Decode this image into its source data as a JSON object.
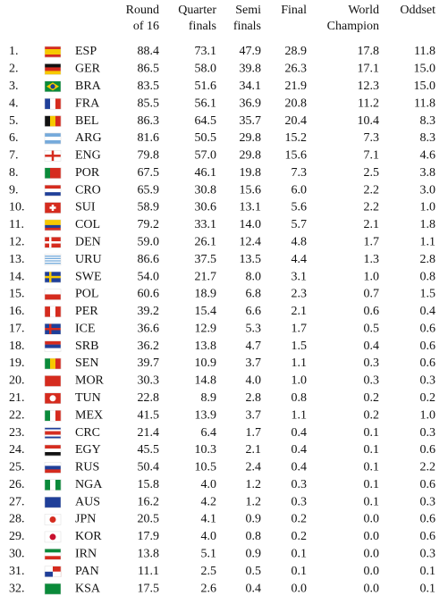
{
  "table": {
    "headers": [
      [
        "Round",
        "of 16"
      ],
      [
        "Quarter",
        "finals"
      ],
      [
        "Semi",
        "finals"
      ],
      [
        "Final"
      ],
      [
        "World",
        "Champion"
      ],
      [
        "Oddset"
      ]
    ],
    "rows": [
      {
        "rank": "1.",
        "code": "ESP",
        "cells": [
          "88.4",
          "73.1",
          "47.9",
          "28.9",
          "17.8",
          "11.8"
        ]
      },
      {
        "rank": "2.",
        "code": "GER",
        "cells": [
          "86.5",
          "58.0",
          "39.8",
          "26.3",
          "17.1",
          "15.0"
        ]
      },
      {
        "rank": "3.",
        "code": "BRA",
        "cells": [
          "83.5",
          "51.6",
          "34.1",
          "21.9",
          "12.3",
          "15.0"
        ]
      },
      {
        "rank": "4.",
        "code": "FRA",
        "cells": [
          "85.5",
          "56.1",
          "36.9",
          "20.8",
          "11.2",
          "11.8"
        ]
      },
      {
        "rank": "5.",
        "code": "BEL",
        "cells": [
          "86.3",
          "64.5",
          "35.7",
          "20.4",
          "10.4",
          "8.3"
        ]
      },
      {
        "rank": "6.",
        "code": "ARG",
        "cells": [
          "81.6",
          "50.5",
          "29.8",
          "15.2",
          "7.3",
          "8.3"
        ]
      },
      {
        "rank": "7.",
        "code": "ENG",
        "cells": [
          "79.8",
          "57.0",
          "29.8",
          "15.6",
          "7.1",
          "4.6"
        ]
      },
      {
        "rank": "8.",
        "code": "POR",
        "cells": [
          "67.5",
          "46.1",
          "19.8",
          "7.3",
          "2.5",
          "3.8"
        ]
      },
      {
        "rank": "9.",
        "code": "CRO",
        "cells": [
          "65.9",
          "30.8",
          "15.6",
          "6.0",
          "2.2",
          "3.0"
        ]
      },
      {
        "rank": "10.",
        "code": "SUI",
        "cells": [
          "58.9",
          "30.6",
          "13.1",
          "5.6",
          "2.2",
          "1.0"
        ]
      },
      {
        "rank": "11.",
        "code": "COL",
        "cells": [
          "79.2",
          "33.1",
          "14.0",
          "5.7",
          "2.1",
          "1.8"
        ]
      },
      {
        "rank": "12.",
        "code": "DEN",
        "cells": [
          "59.0",
          "26.1",
          "12.4",
          "4.8",
          "1.7",
          "1.1"
        ]
      },
      {
        "rank": "13.",
        "code": "URU",
        "cells": [
          "86.6",
          "37.5",
          "13.5",
          "4.4",
          "1.3",
          "2.8"
        ]
      },
      {
        "rank": "14.",
        "code": "SWE",
        "cells": [
          "54.0",
          "21.7",
          "8.0",
          "3.1",
          "1.0",
          "0.8"
        ]
      },
      {
        "rank": "15.",
        "code": "POL",
        "cells": [
          "60.6",
          "18.9",
          "6.8",
          "2.3",
          "0.7",
          "1.5"
        ]
      },
      {
        "rank": "16.",
        "code": "PER",
        "cells": [
          "39.2",
          "15.4",
          "6.6",
          "2.1",
          "0.6",
          "0.4"
        ]
      },
      {
        "rank": "17.",
        "code": "ICE",
        "cells": [
          "36.6",
          "12.9",
          "5.3",
          "1.7",
          "0.5",
          "0.6"
        ]
      },
      {
        "rank": "18.",
        "code": "SRB",
        "cells": [
          "36.2",
          "13.8",
          "4.7",
          "1.5",
          "0.4",
          "0.6"
        ]
      },
      {
        "rank": "19.",
        "code": "SEN",
        "cells": [
          "39.7",
          "10.9",
          "3.7",
          "1.1",
          "0.3",
          "0.6"
        ]
      },
      {
        "rank": "20.",
        "code": "MOR",
        "cells": [
          "30.3",
          "14.8",
          "4.0",
          "1.0",
          "0.3",
          "0.3"
        ]
      },
      {
        "rank": "21.",
        "code": "TUN",
        "cells": [
          "22.8",
          "8.9",
          "2.8",
          "0.8",
          "0.2",
          "0.2"
        ]
      },
      {
        "rank": "22.",
        "code": "MEX",
        "cells": [
          "41.5",
          "13.9",
          "3.7",
          "1.1",
          "0.2",
          "1.0"
        ]
      },
      {
        "rank": "23.",
        "code": "CRC",
        "cells": [
          "21.4",
          "6.4",
          "1.7",
          "0.4",
          "0.1",
          "0.3"
        ]
      },
      {
        "rank": "24.",
        "code": "EGY",
        "cells": [
          "45.5",
          "10.3",
          "2.1",
          "0.4",
          "0.1",
          "0.6"
        ]
      },
      {
        "rank": "25.",
        "code": "RUS",
        "cells": [
          "50.4",
          "10.5",
          "2.4",
          "0.4",
          "0.1",
          "2.2"
        ]
      },
      {
        "rank": "26.",
        "code": "NGA",
        "cells": [
          "15.8",
          "4.0",
          "1.2",
          "0.3",
          "0.1",
          "0.6"
        ]
      },
      {
        "rank": "27.",
        "code": "AUS",
        "cells": [
          "16.2",
          "4.2",
          "1.2",
          "0.3",
          "0.1",
          "0.3"
        ]
      },
      {
        "rank": "28.",
        "code": "JPN",
        "cells": [
          "20.5",
          "4.1",
          "0.9",
          "0.2",
          "0.0",
          "0.6"
        ]
      },
      {
        "rank": "29.",
        "code": "KOR",
        "cells": [
          "17.9",
          "4.0",
          "0.8",
          "0.2",
          "0.0",
          "0.6"
        ]
      },
      {
        "rank": "30.",
        "code": "IRN",
        "cells": [
          "13.8",
          "5.1",
          "0.9",
          "0.1",
          "0.0",
          "0.3"
        ]
      },
      {
        "rank": "31.",
        "code": "PAN",
        "cells": [
          "11.1",
          "2.5",
          "0.5",
          "0.1",
          "0.0",
          "0.1"
        ]
      },
      {
        "rank": "32.",
        "code": "KSA",
        "cells": [
          "17.5",
          "2.6",
          "0.4",
          "0.0",
          "0.0",
          "0.1"
        ]
      }
    ]
  }
}
